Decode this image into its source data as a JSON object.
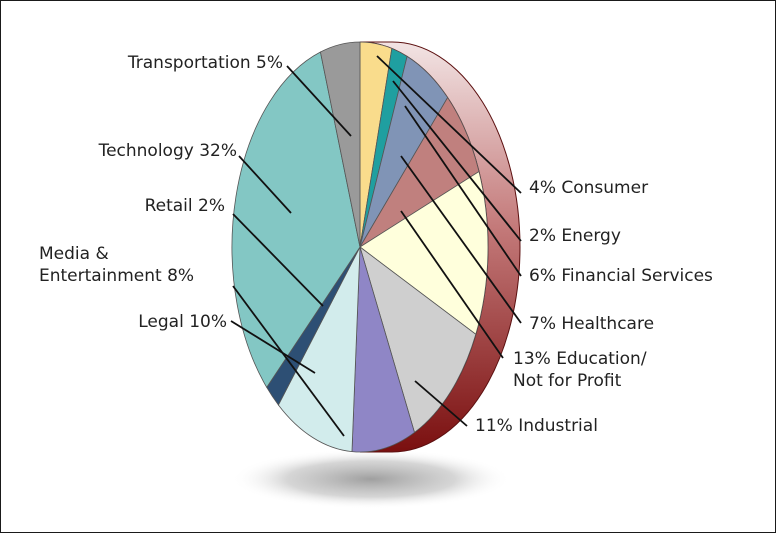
{
  "chart_data": {
    "type": "pie",
    "title": "",
    "slices": [
      {
        "label": "Consumer",
        "value": 4,
        "text": "4% Consumer",
        "color": "#f9dc8c"
      },
      {
        "label": "Energy",
        "value": 2,
        "text": "2% Energy",
        "color": "#1f9fa0"
      },
      {
        "label": "Financial Services",
        "value": 6,
        "text": "6% Financial Services",
        "color": "#8094b6"
      },
      {
        "label": "Healthcare",
        "value": 7,
        "text": "7% Healthcare",
        "color": "#c0807e"
      },
      {
        "label": "Education/ Not for Profit",
        "value": 13,
        "text": [
          "13% Education/",
          "Not for Profit"
        ],
        "color": "#ffffdc"
      },
      {
        "label": "Industrial",
        "value": 11,
        "text": "11% Industrial",
        "color": "#cfcfcf"
      },
      {
        "label": "Media & Entertainment",
        "value": 8,
        "text": [
          "Media &",
          "Entertainment 8%"
        ],
        "color": "#8f86c6"
      },
      {
        "label": "Legal",
        "value": 10,
        "text": "Legal 10%",
        "color": "#d2ecec"
      },
      {
        "label": "Retail",
        "value": 2,
        "text": "Retail 2%",
        "color": "#2d4f74"
      },
      {
        "label": "Technology",
        "value": 32,
        "text": "Technology 32%",
        "color": "#83c7c4"
      },
      {
        "label": "Transportation",
        "value": 5,
        "text": "Transportation 5%",
        "color": "#9a9a9a"
      }
    ],
    "edge_color": "#8a1c1c"
  }
}
